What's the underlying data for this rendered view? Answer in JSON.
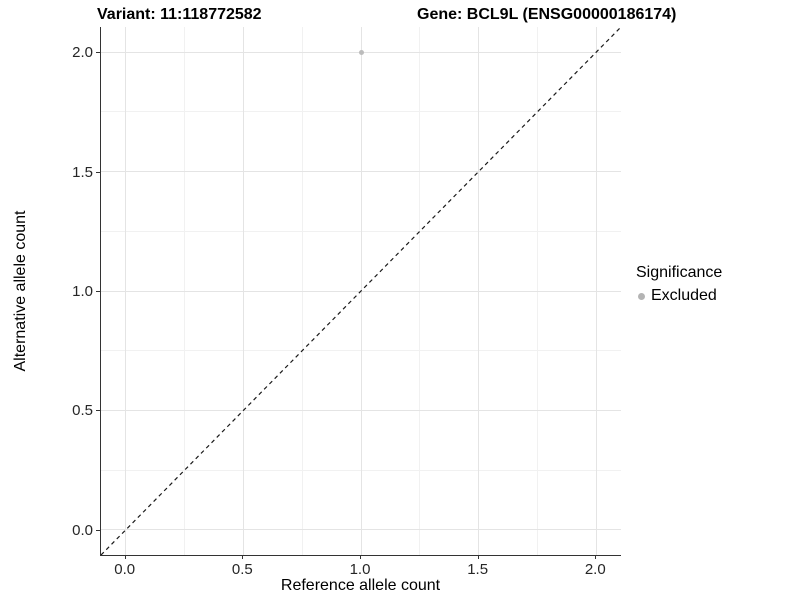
{
  "chart_data": {
    "type": "scatter",
    "titles": {
      "left": "Variant: 11:118772582",
      "right": "Gene: BCL9L (ENSG00000186174)"
    },
    "xlabel": "Reference allele count",
    "ylabel": "Alternative allele count",
    "xlim": [
      -0.105,
      2.105
    ],
    "ylim": [
      -0.105,
      2.105
    ],
    "x_ticks": {
      "values": [
        0.0,
        0.5,
        1.0,
        1.5,
        2.0
      ],
      "labels": [
        "0.0",
        "0.5",
        "1.0",
        "1.5",
        "2.0"
      ]
    },
    "y_ticks": {
      "values": [
        0.0,
        0.5,
        1.0,
        1.5,
        2.0
      ],
      "labels": [
        "0.0",
        "0.5",
        "1.0",
        "1.5",
        "2.0"
      ]
    },
    "minor_grid_values": [
      0.25,
      0.75,
      1.25,
      1.75
    ],
    "grid": {
      "major_color": "#e4e4e4",
      "minor_color": "#f1f1f1",
      "on": true
    },
    "reference_line": {
      "kind": "identity",
      "style": "dashed",
      "color": "#1a1a1a"
    },
    "series": [
      {
        "name": "Excluded",
        "color": "#bcbcbc",
        "point_diameter": 5,
        "points": [
          {
            "x": 1.0,
            "y": 2.0
          }
        ]
      }
    ],
    "legend": {
      "title": "Significance",
      "position": "right",
      "items": [
        {
          "label": "Excluded",
          "color": "#b4b4b4"
        }
      ]
    }
  }
}
